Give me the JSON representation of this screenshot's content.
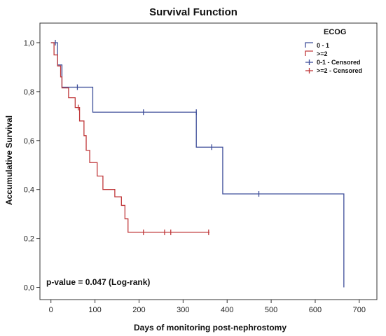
{
  "chart_data": {
    "type": "line",
    "subtype": "kaplan-meier",
    "title": "Survival Function",
    "xlabel": "Days of monitoring post-nephrostomy",
    "ylabel": "Accumulative Survival",
    "xlim": [
      -25,
      740
    ],
    "ylim": [
      -0.05,
      1.08
    ],
    "xticks": [
      0,
      100,
      200,
      300,
      400,
      500,
      600,
      700
    ],
    "xtick_labels": [
      "0",
      "100",
      "200",
      "300",
      "400",
      "500",
      "600",
      "700"
    ],
    "yticks": [
      0.0,
      0.2,
      0.4,
      0.6,
      0.8,
      1.0
    ],
    "ytick_labels": [
      "0,0",
      "0,2",
      "0,4",
      "0,6",
      "0,8",
      "1,0"
    ],
    "grid": false,
    "legend": {
      "title": "ECOG",
      "placement": "top-right",
      "entries": [
        {
          "label": "0 - 1",
          "kind": "step",
          "color": "#3f4f9a"
        },
        {
          "label": ">=2",
          "kind": "step",
          "color": "#c0393b"
        },
        {
          "label": "0-1 - Censored",
          "kind": "censor",
          "color": "#3f4f9a"
        },
        {
          "label": ">=2 - Censored",
          "kind": "censor",
          "color": "#c0393b"
        }
      ]
    },
    "annotation": "p-value = 0.047 (Log-rank)",
    "series": [
      {
        "group": "0-1",
        "color": "#3f4f9a",
        "steps": [
          {
            "x": 0,
            "y": 1.0
          },
          {
            "x": 15,
            "y": 0.909
          },
          {
            "x": 25,
            "y": 0.818
          },
          {
            "x": 95,
            "y": 0.716
          },
          {
            "x": 330,
            "y": 0.573
          },
          {
            "x": 390,
            "y": 0.382
          },
          {
            "x": 665,
            "y": 0.0
          }
        ],
        "end_x": 665,
        "censored": [
          {
            "x": 10,
            "y": 1.0
          },
          {
            "x": 60,
            "y": 0.818
          },
          {
            "x": 210,
            "y": 0.716
          },
          {
            "x": 330,
            "y": 0.716
          },
          {
            "x": 365,
            "y": 0.573
          },
          {
            "x": 472,
            "y": 0.382
          }
        ]
      },
      {
        "group": ">=2",
        "color": "#c0393b",
        "steps": [
          {
            "x": 0,
            "y": 1.0
          },
          {
            "x": 7,
            "y": 0.95
          },
          {
            "x": 15,
            "y": 0.905
          },
          {
            "x": 22,
            "y": 0.86
          },
          {
            "x": 25,
            "y": 0.815
          },
          {
            "x": 40,
            "y": 0.775
          },
          {
            "x": 55,
            "y": 0.735
          },
          {
            "x": 65,
            "y": 0.68
          },
          {
            "x": 75,
            "y": 0.62
          },
          {
            "x": 80,
            "y": 0.56
          },
          {
            "x": 88,
            "y": 0.51
          },
          {
            "x": 105,
            "y": 0.455
          },
          {
            "x": 118,
            "y": 0.4
          },
          {
            "x": 145,
            "y": 0.37
          },
          {
            "x": 160,
            "y": 0.335
          },
          {
            "x": 168,
            "y": 0.28
          },
          {
            "x": 175,
            "y": 0.225
          }
        ],
        "end_x": 360,
        "censored": [
          {
            "x": 62,
            "y": 0.735
          },
          {
            "x": 210,
            "y": 0.225
          },
          {
            "x": 258,
            "y": 0.225
          },
          {
            "x": 272,
            "y": 0.225
          },
          {
            "x": 358,
            "y": 0.225
          }
        ]
      }
    ]
  }
}
